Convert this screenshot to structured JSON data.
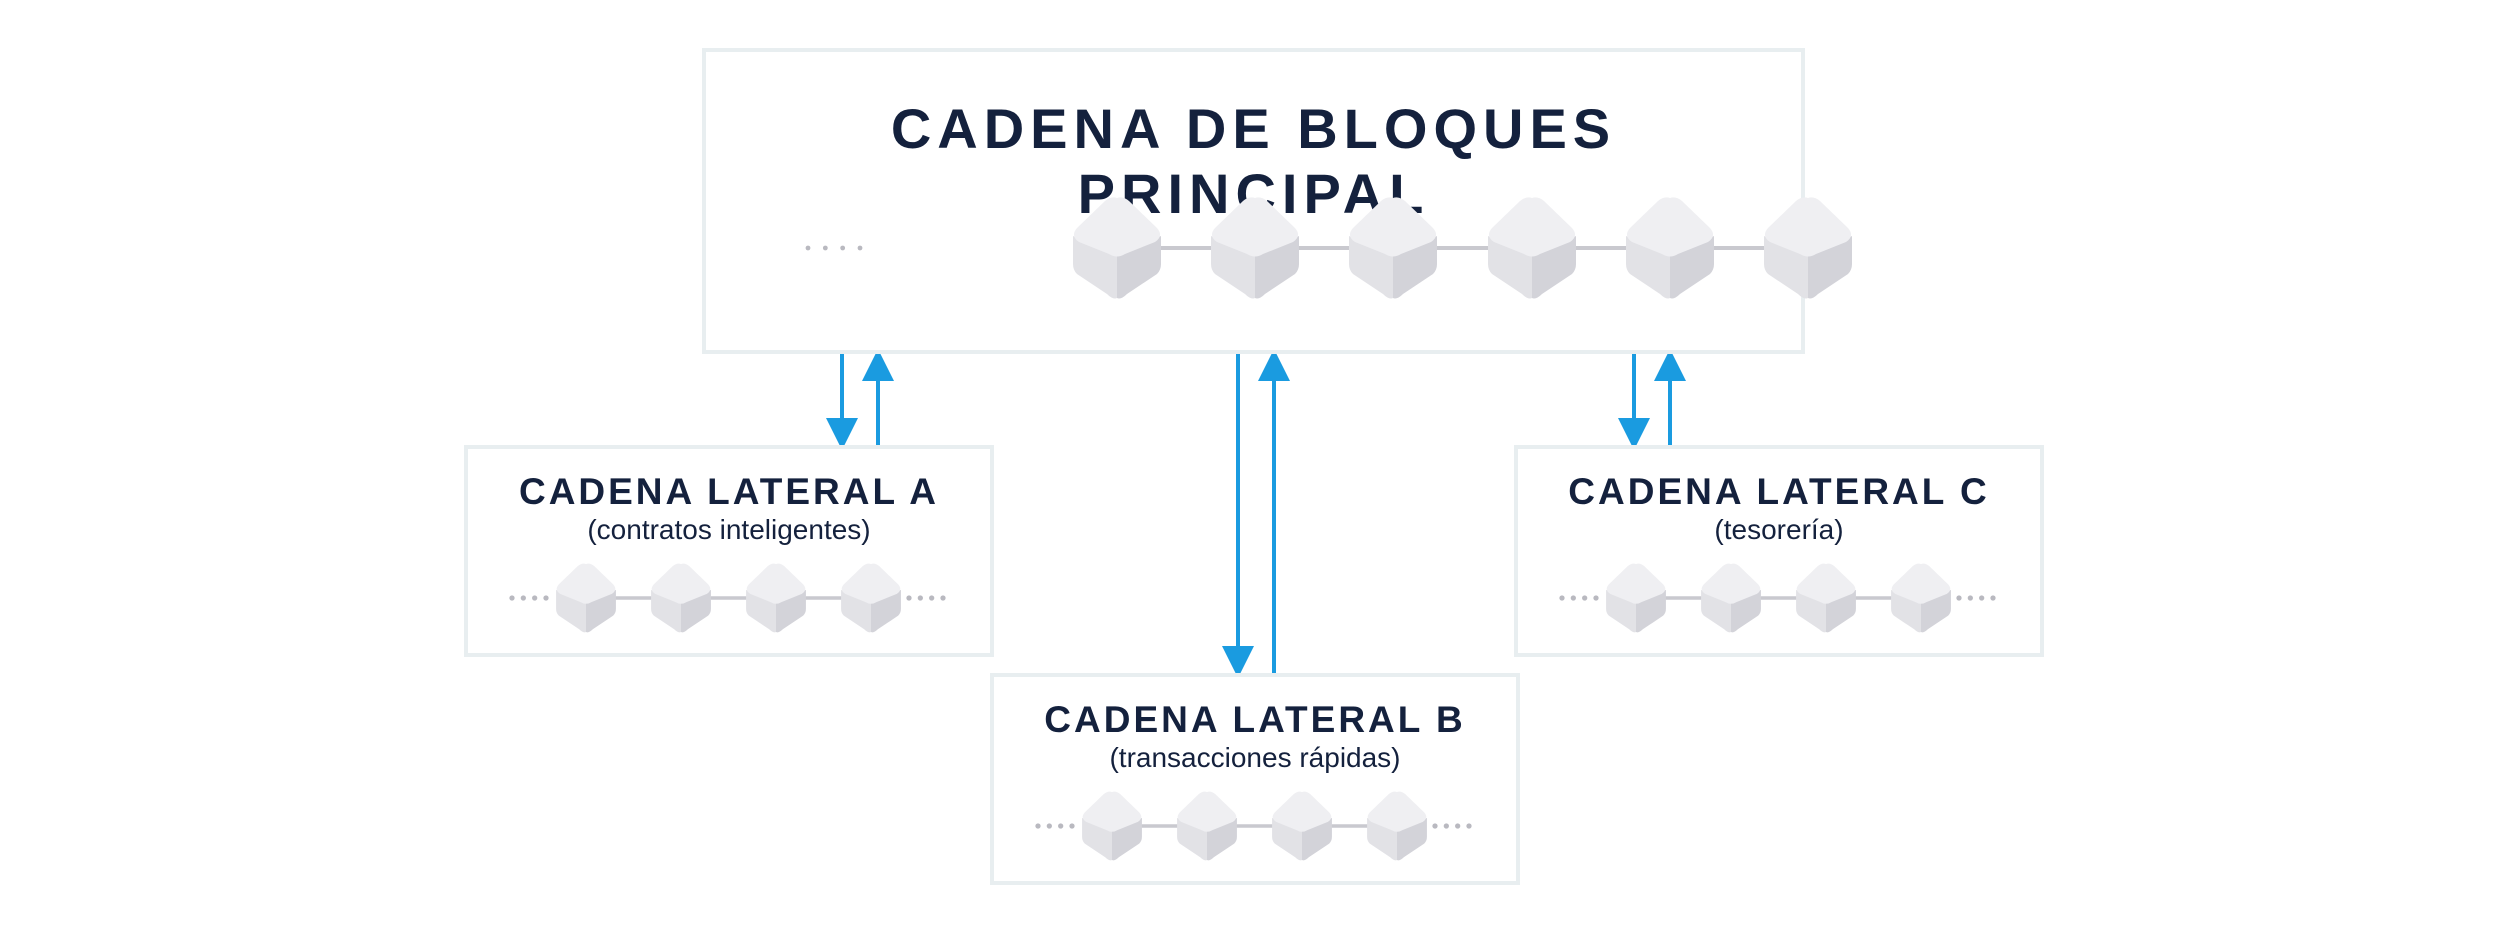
{
  "main_chain": {
    "title": "CADENA DE BLOQUES PRINCIPAL",
    "block_count": 6
  },
  "side_chains": [
    {
      "id": "a",
      "title": "CADENA LATERAL A",
      "subtitle": "(contratos inteligentes)",
      "block_count": 4
    },
    {
      "id": "b",
      "title": "CADENA LATERAL B",
      "subtitle": "(transacciones rápidas)",
      "block_count": 4
    },
    {
      "id": "c",
      "title": "CADENA LATERAL C",
      "subtitle": "(tesorería)",
      "block_count": 4
    }
  ],
  "colors": {
    "arrow": "#1a9be0",
    "title": "#14213d",
    "border": "#e8eef0",
    "block_top": "#efeff2",
    "block_left": "#e2e2e6",
    "block_right": "#d3d3d9",
    "connector": "#c9c9cf"
  },
  "icons": {
    "block": "cube-icon",
    "continuation": "ellipsis-dots"
  }
}
